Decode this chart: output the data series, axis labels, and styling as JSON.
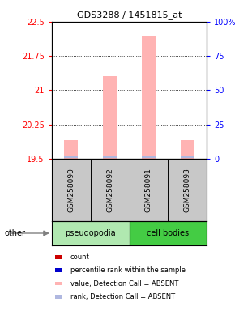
{
  "title": "GDS3288 / 1451815_at",
  "samples": [
    "GSM258090",
    "GSM258092",
    "GSM258091",
    "GSM258093"
  ],
  "ylim": [
    19.5,
    22.5
  ],
  "yticks_left": [
    19.5,
    20.25,
    21.0,
    21.75,
    22.5
  ],
  "ytick_labels_left": [
    "19.5",
    "20.25",
    "21",
    "21.75",
    "22.5"
  ],
  "ytick_labels_right": [
    "0",
    "25",
    "50",
    "75",
    "100%"
  ],
  "bar_values": [
    19.9,
    21.3,
    22.2,
    19.9
  ],
  "rank_values": [
    19.52,
    19.52,
    19.52,
    19.52
  ],
  "bar_color_absent": "#ffb3b3",
  "rank_color_absent": "#b0b8e0",
  "bar_bottom": 19.5,
  "group_bg_light": "#b0e8b0",
  "group_bg_dark": "#44cc44",
  "legend_items": [
    {
      "color": "#cc0000",
      "label": "count"
    },
    {
      "color": "#0000cc",
      "label": "percentile rank within the sample"
    },
    {
      "color": "#ffb3b3",
      "label": "value, Detection Call = ABSENT"
    },
    {
      "color": "#b0b8e0",
      "label": "rank, Detection Call = ABSENT"
    }
  ],
  "sample_bg_color": "#c8c8c8",
  "bar_width": 0.35
}
